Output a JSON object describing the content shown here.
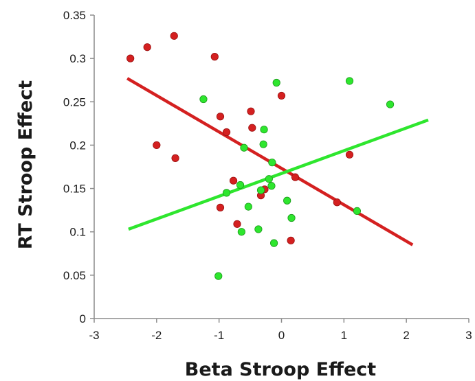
{
  "chart_data": {
    "type": "scatter",
    "title": "",
    "xlabel": "Beta Stroop Effect",
    "ylabel": "RT Stroop Effect",
    "xlim": [
      -3,
      3
    ],
    "ylim": [
      0,
      0.35
    ],
    "x_ticks": [
      -3,
      -2,
      -1,
      0,
      1,
      2,
      3
    ],
    "y_ticks": [
      0,
      0.05,
      0.1,
      0.15,
      0.2,
      0.25,
      0.3,
      0.35
    ],
    "x_tick_labels": [
      "-3",
      "-2",
      "-1",
      "0",
      "1",
      "2",
      "3"
    ],
    "y_tick_labels": [
      "0",
      "0.05",
      "0.1",
      "0.15",
      "0.2",
      "0.25",
      "0.3",
      "0.35"
    ],
    "grid": false,
    "legend": "none",
    "series": [
      {
        "color": "#d42020",
        "points": [
          [
            -2.42,
            0.3
          ],
          [
            -2.15,
            0.313
          ],
          [
            -1.72,
            0.326
          ],
          [
            -1.07,
            0.302
          ],
          [
            -0.98,
            0.233
          ],
          [
            -0.88,
            0.215
          ],
          [
            -2.0,
            0.2
          ],
          [
            -1.7,
            0.185
          ],
          [
            -0.49,
            0.239
          ],
          [
            -0.47,
            0.22
          ],
          [
            0.0,
            0.257
          ],
          [
            -0.77,
            0.159
          ],
          [
            -0.98,
            0.128
          ],
          [
            -0.33,
            0.142
          ],
          [
            -0.27,
            0.149
          ],
          [
            0.22,
            0.163
          ],
          [
            -0.71,
            0.109
          ],
          [
            0.15,
            0.09
          ],
          [
            0.89,
            0.134
          ],
          [
            1.09,
            0.189
          ]
        ],
        "trendline": {
          "x": [
            -2.47,
            2.1
          ],
          "y": [
            0.277,
            0.085
          ]
        }
      },
      {
        "color": "#2ee62e",
        "points": [
          [
            -1.25,
            0.253
          ],
          [
            -0.08,
            0.272
          ],
          [
            1.09,
            0.274
          ],
          [
            1.74,
            0.247
          ],
          [
            -0.28,
            0.218
          ],
          [
            -0.29,
            0.201
          ],
          [
            -0.6,
            0.197
          ],
          [
            -0.15,
            0.18
          ],
          [
            -0.2,
            0.161
          ],
          [
            -0.16,
            0.153
          ],
          [
            -0.66,
            0.154
          ],
          [
            -0.33,
            0.148
          ],
          [
            -0.88,
            0.145
          ],
          [
            0.09,
            0.136
          ],
          [
            -0.53,
            0.129
          ],
          [
            1.21,
            0.124
          ],
          [
            0.16,
            0.116
          ],
          [
            -0.37,
            0.103
          ],
          [
            -0.64,
            0.1
          ],
          [
            -0.12,
            0.087
          ],
          [
            -1.01,
            0.049
          ]
        ],
        "trendline": {
          "x": [
            -2.45,
            2.35
          ],
          "y": [
            0.103,
            0.229
          ]
        }
      }
    ]
  }
}
